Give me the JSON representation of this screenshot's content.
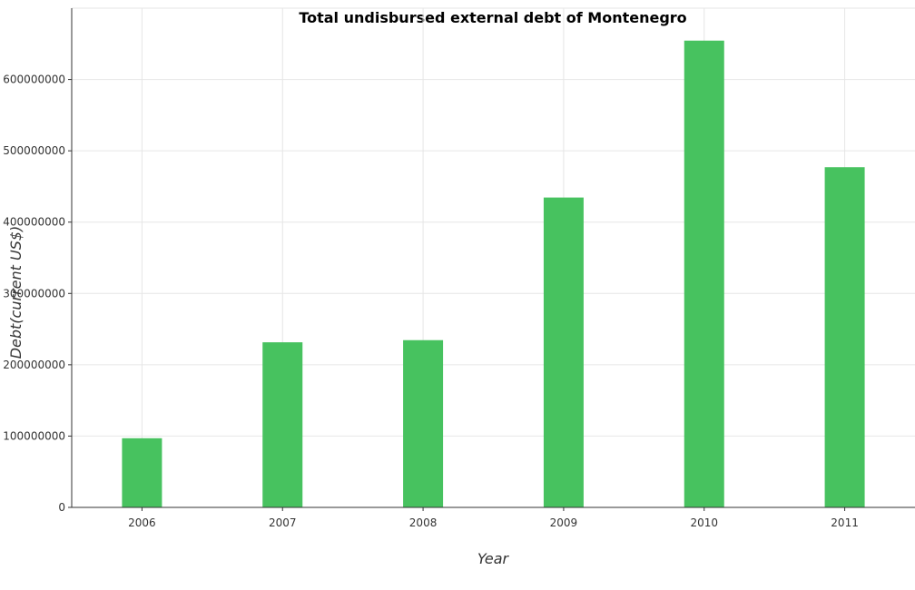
{
  "chart_data": {
    "type": "bar",
    "title": "Total undisbursed external debt of Montenegro",
    "xlabel": "Year",
    "ylabel": "Debt(current US$)",
    "categories": [
      "2006",
      "2007",
      "2008",
      "2009",
      "2010",
      "2011"
    ],
    "values": [
      97000000,
      231500000,
      234500000,
      434500000,
      654500000,
      477000000
    ],
    "ylim": [
      0,
      700000000
    ],
    "yticks": [
      0,
      100000000,
      200000000,
      300000000,
      400000000,
      500000000,
      600000000
    ],
    "ytick_labels": [
      "0",
      "100000000",
      "200000000",
      "300000000",
      "400000000",
      "500000000",
      "600000000"
    ],
    "bar_color": "#47c25f",
    "grid": true,
    "legend": "none"
  }
}
